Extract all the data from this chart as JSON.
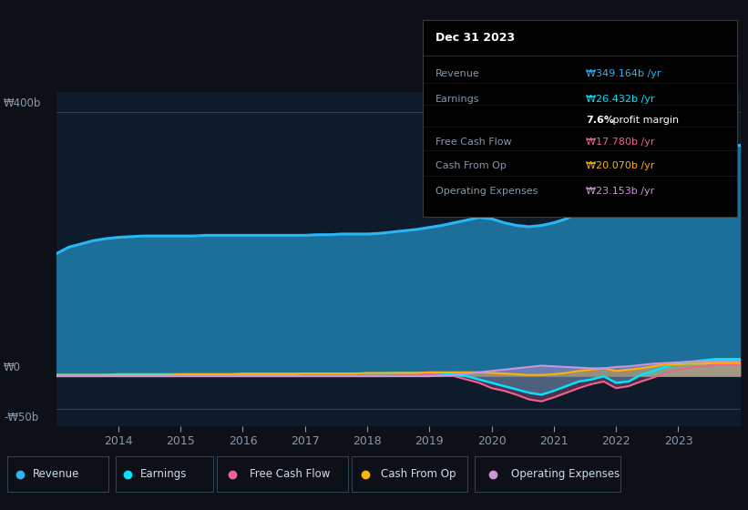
{
  "bg_color": "#0d1117",
  "plot_bg_color": "#0d1b2a",
  "title": "Dec 31 2023",
  "years": [
    2013.0,
    2013.2,
    2013.4,
    2013.6,
    2013.8,
    2014.0,
    2014.2,
    2014.4,
    2014.6,
    2014.8,
    2015.0,
    2015.2,
    2015.4,
    2015.6,
    2015.8,
    2016.0,
    2016.2,
    2016.4,
    2016.6,
    2016.8,
    2017.0,
    2017.2,
    2017.4,
    2017.6,
    2017.8,
    2018.0,
    2018.2,
    2018.4,
    2018.6,
    2018.8,
    2019.0,
    2019.2,
    2019.4,
    2019.6,
    2019.8,
    2020.0,
    2020.2,
    2020.4,
    2020.6,
    2020.8,
    2021.0,
    2021.2,
    2021.4,
    2021.6,
    2021.8,
    2022.0,
    2022.2,
    2022.4,
    2022.6,
    2022.8,
    2023.0,
    2023.2,
    2023.4,
    2023.6,
    2023.8,
    2024.0
  ],
  "revenue": [
    185,
    195,
    200,
    205,
    208,
    210,
    211,
    212,
    212,
    212,
    212,
    212,
    213,
    213,
    213,
    213,
    213,
    213,
    213,
    213,
    213,
    214,
    214,
    215,
    215,
    215,
    216,
    218,
    220,
    222,
    225,
    228,
    232,
    236,
    240,
    238,
    232,
    228,
    226,
    228,
    232,
    238,
    248,
    258,
    268,
    275,
    285,
    298,
    315,
    330,
    340,
    344,
    347,
    349,
    349,
    349
  ],
  "earnings": [
    2,
    2,
    2,
    2,
    2,
    3,
    3,
    3,
    3,
    3,
    3,
    3,
    3,
    3,
    3,
    4,
    4,
    4,
    4,
    4,
    4,
    4,
    4,
    4,
    4,
    4,
    4,
    5,
    5,
    5,
    5,
    5,
    3,
    0,
    -5,
    -10,
    -15,
    -20,
    -25,
    -28,
    -22,
    -15,
    -8,
    -5,
    0,
    -10,
    -8,
    2,
    8,
    15,
    20,
    22,
    24,
    26,
    26,
    26
  ],
  "free_cash_flow": [
    1,
    1,
    1,
    1,
    1,
    1,
    1,
    1,
    1,
    1,
    1,
    2,
    2,
    2,
    2,
    2,
    2,
    2,
    2,
    2,
    2,
    2,
    2,
    2,
    2,
    2,
    2,
    2,
    3,
    3,
    3,
    2,
    0,
    -5,
    -10,
    -18,
    -22,
    -28,
    -35,
    -38,
    -32,
    -25,
    -18,
    -12,
    -8,
    -18,
    -15,
    -8,
    -2,
    5,
    10,
    13,
    15,
    17,
    18,
    18
  ],
  "cash_from_op": [
    2,
    2,
    2,
    2,
    2,
    2,
    2,
    2,
    2,
    2,
    3,
    3,
    3,
    3,
    3,
    3,
    3,
    3,
    3,
    3,
    4,
    4,
    4,
    4,
    4,
    5,
    5,
    5,
    5,
    5,
    6,
    6,
    6,
    6,
    6,
    5,
    4,
    3,
    2,
    2,
    3,
    5,
    8,
    10,
    12,
    8,
    10,
    12,
    15,
    18,
    18,
    19,
    19,
    20,
    20,
    20
  ],
  "operating_expenses": [
    0,
    0,
    0,
    0,
    0,
    0,
    0,
    0,
    0,
    0,
    0,
    0,
    0,
    0,
    0,
    0,
    0,
    0,
    0,
    0,
    0,
    0,
    0,
    0,
    0,
    0,
    0,
    0,
    0,
    0,
    0,
    1,
    2,
    4,
    6,
    8,
    10,
    12,
    14,
    16,
    15,
    14,
    13,
    12,
    12,
    14,
    15,
    17,
    19,
    20,
    21,
    22,
    22,
    23,
    23,
    23
  ],
  "revenue_color": "#29b6f6",
  "earnings_color": "#00e5ff",
  "free_cash_flow_color": "#f06292",
  "cash_from_op_color": "#ffb300",
  "operating_expenses_color": "#ce93d8",
  "ylim_min": -75,
  "ylim_max": 430,
  "xlabel_years": [
    2014,
    2015,
    2016,
    2017,
    2018,
    2019,
    2020,
    2021,
    2022,
    2023
  ],
  "legend_items": [
    "Revenue",
    "Earnings",
    "Free Cash Flow",
    "Cash From Op",
    "Operating Expenses"
  ],
  "legend_colors": [
    "#29b6f6",
    "#00e5ff",
    "#f06292",
    "#ffb300",
    "#ce93d8"
  ],
  "tooltip_title": "Dec 31 2023",
  "tooltip_revenue": "₩349.164b /yr",
  "tooltip_earnings": "₩26.432b /yr",
  "tooltip_margin": "7.6%",
  "tooltip_margin_text": " profit margin",
  "tooltip_fcf": "₩17.780b /yr",
  "tooltip_cfop": "₩20.070b /yr",
  "tooltip_opex": "₩23.153b /yr"
}
